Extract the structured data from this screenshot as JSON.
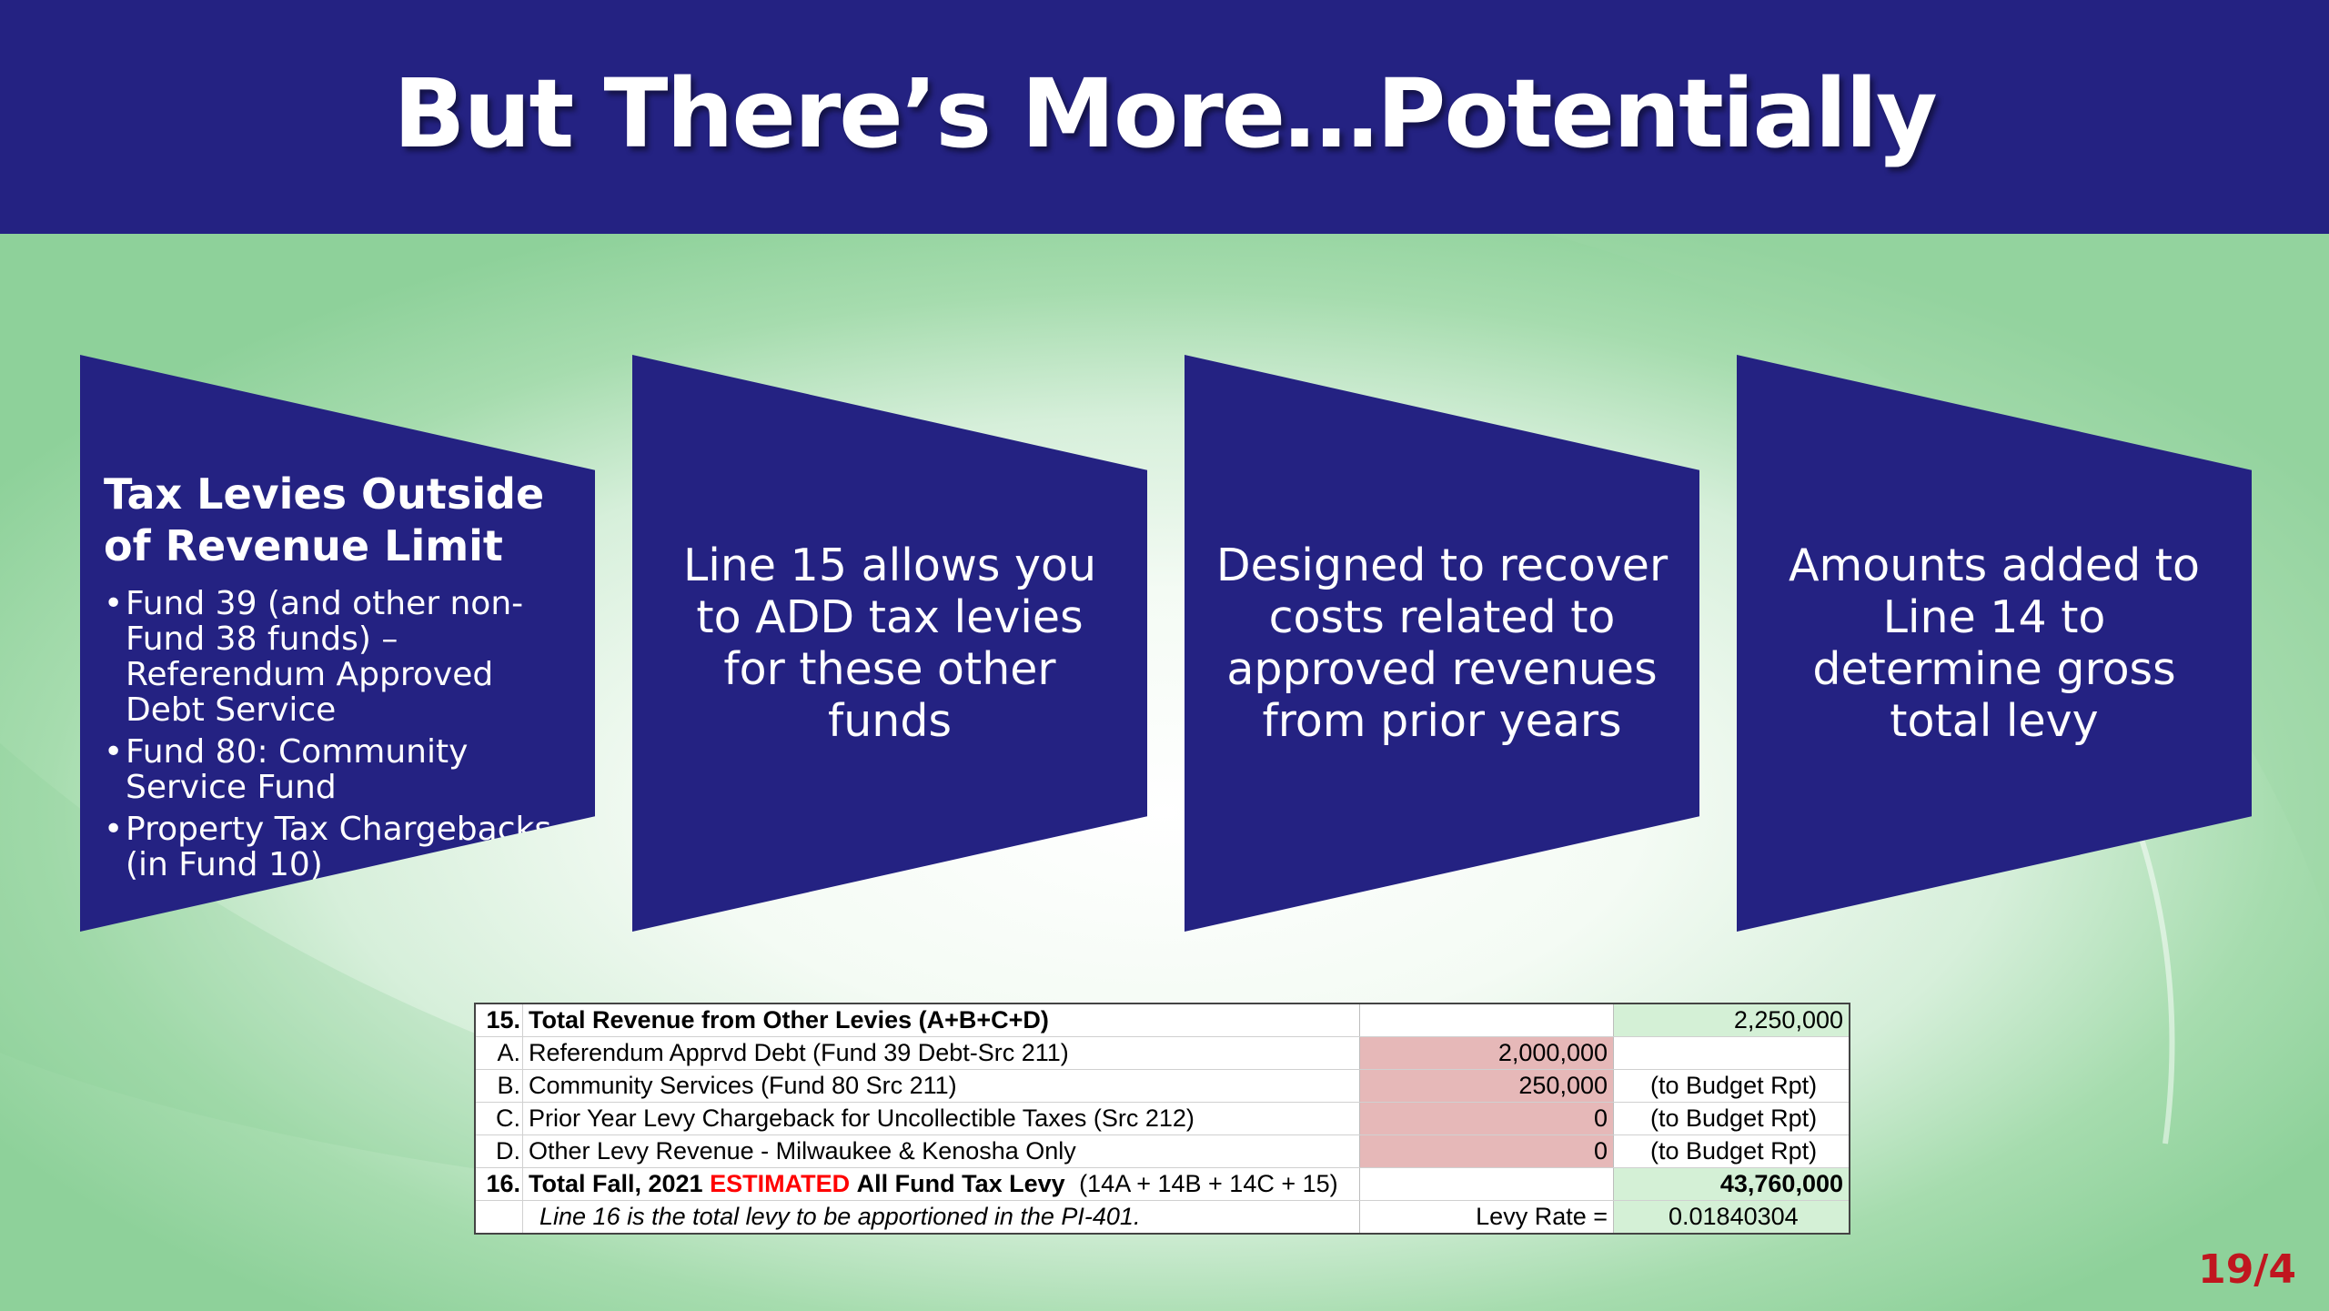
{
  "slide": {
    "title": "But There’s More…Potentially",
    "page_number": "19/4"
  },
  "panels": [
    {
      "heading": "Tax Levies Outside of Revenue Limit",
      "bullets": [
        "Fund 39 (and other non-Fund 38 funds) – Referendum Approved Debt Service",
        "Fund 80:  Community Service Fund",
        "Property Tax Chargebacks (in Fund 10)"
      ]
    },
    {
      "text": "Line 15 allows you to ADD tax levies for these other funds"
    },
    {
      "text": "Designed to recover costs related to approved revenues from prior years"
    },
    {
      "text": "Amounts added to Line 14 to determine gross total levy"
    }
  ],
  "levy_table": {
    "row15": {
      "num": "15.",
      "label": "Total Revenue from Other Levies (A+B+C+D)",
      "total": "2,250,000"
    },
    "rowA": {
      "num": "A.",
      "label": "Referendum Apprvd Debt (Fund 39 Debt-Src 211)",
      "amount": "2,000,000"
    },
    "rowB": {
      "num": "B.",
      "label": "Community Services (Fund 80 Src 211)",
      "amount": "250,000",
      "note": "(to Budget Rpt)"
    },
    "rowC": {
      "num": "C.",
      "label": "Prior Year Levy Chargeback for Uncollectible Taxes (Src 212)",
      "amount": "0",
      "note": "(to Budget Rpt)"
    },
    "rowD": {
      "num": "D.",
      "label": "Other Levy Revenue - Milwaukee & Kenosha Only",
      "amount": "0",
      "note": "(to Budget Rpt)"
    },
    "row16": {
      "num": "16.",
      "label_before": "Total Fall, 2021",
      "label_highlight": "ESTIMATED",
      "label_after": "All Fund Tax Levy",
      "formula": "(14A + 14B + 14C + 15)",
      "total": "43,760,000"
    },
    "footer": {
      "note": "Line 16 is the total levy to be apportioned in the PI-401.",
      "rate_label": "Levy Rate =",
      "rate_value": "0.01840304"
    }
  },
  "colors": {
    "header_bg": "#242282",
    "panel_bg": "#242282",
    "page_number": "#c0161f",
    "estimated": "#ff0000"
  }
}
